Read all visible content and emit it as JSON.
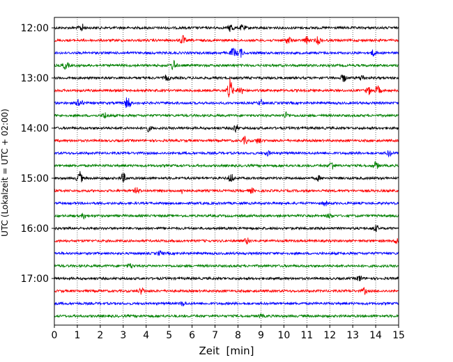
{
  "chart_data": {
    "type": "line",
    "title": "",
    "xlabel": "Zeit  [min]",
    "ylabel": "UTC (Lokalzeit = UTC + 02:00)",
    "xlim": [
      0,
      15
    ],
    "x_ticks": [
      0,
      1,
      2,
      3,
      4,
      5,
      6,
      7,
      8,
      9,
      10,
      11,
      12,
      13,
      14,
      15
    ],
    "x_tick_labels": [
      "0",
      "1",
      "2",
      "3",
      "4",
      "5",
      "6",
      "7",
      "8",
      "9",
      "10",
      "11",
      "12",
      "13",
      "14",
      "15"
    ],
    "grid": "vertical dotted",
    "y_tick_labels": [
      "12:00",
      "13:00",
      "14:00",
      "15:00",
      "16:00",
      "17:00"
    ],
    "y_tick_rows": [
      0,
      4,
      8,
      12,
      16,
      20
    ],
    "trace_colors": [
      "#000000",
      "#ff0000",
      "#0000ff",
      "#008000"
    ],
    "traces": [
      {
        "row": 0,
        "color": "#000000",
        "events": [
          {
            "x": 1.2,
            "amp": 5
          },
          {
            "x": 7.7,
            "amp": 6
          },
          {
            "x": 8.2,
            "amp": 4
          }
        ]
      },
      {
        "row": 1,
        "color": "#ff0000",
        "events": [
          {
            "x": 5.6,
            "amp": 6
          },
          {
            "x": 10.2,
            "amp": 5
          },
          {
            "x": 11.0,
            "amp": 5
          },
          {
            "x": 11.5,
            "amp": 5
          }
        ]
      },
      {
        "row": 2,
        "color": "#0000ff",
        "events": [
          {
            "x": 7.8,
            "amp": 7
          },
          {
            "x": 8.1,
            "amp": 6
          },
          {
            "x": 13.9,
            "amp": 4
          }
        ]
      },
      {
        "row": 3,
        "color": "#008000",
        "events": [
          {
            "x": 0.5,
            "amp": 5
          },
          {
            "x": 5.2,
            "amp": 7
          }
        ]
      },
      {
        "row": 4,
        "color": "#000000",
        "events": [
          {
            "x": 4.9,
            "amp": 4
          },
          {
            "x": 12.6,
            "amp": 5
          },
          {
            "x": 13.4,
            "amp": 4
          }
        ]
      },
      {
        "row": 5,
        "color": "#ff0000",
        "events": [
          {
            "x": 7.65,
            "amp": 16
          },
          {
            "x": 8.1,
            "amp": 6
          },
          {
            "x": 13.7,
            "amp": 5
          },
          {
            "x": 14.1,
            "amp": 6
          }
        ]
      },
      {
        "row": 6,
        "color": "#0000ff",
        "events": [
          {
            "x": 1.1,
            "amp": 7
          },
          {
            "x": 3.2,
            "amp": 10
          },
          {
            "x": 9.0,
            "amp": 4
          }
        ]
      },
      {
        "row": 7,
        "color": "#008000",
        "events": [
          {
            "x": 2.2,
            "amp": 4
          },
          {
            "x": 10.1,
            "amp": 4
          }
        ]
      },
      {
        "row": 8,
        "color": "#000000",
        "events": [
          {
            "x": 4.1,
            "amp": 4
          },
          {
            "x": 7.9,
            "amp": 5
          }
        ]
      },
      {
        "row": 9,
        "color": "#ff0000",
        "events": [
          {
            "x": 8.3,
            "amp": 5
          },
          {
            "x": 8.9,
            "amp": 4
          }
        ]
      },
      {
        "row": 10,
        "color": "#0000ff",
        "events": [
          {
            "x": 9.3,
            "amp": 3
          },
          {
            "x": 14.6,
            "amp": 4
          }
        ]
      },
      {
        "row": 11,
        "color": "#008000",
        "events": [
          {
            "x": 12.1,
            "amp": 6
          },
          {
            "x": 14.0,
            "amp": 5
          }
        ]
      },
      {
        "row": 12,
        "color": "#000000",
        "events": [
          {
            "x": 1.1,
            "amp": 9
          },
          {
            "x": 3.0,
            "amp": 6
          },
          {
            "x": 7.7,
            "amp": 6
          },
          {
            "x": 11.5,
            "amp": 3
          }
        ]
      },
      {
        "row": 13,
        "color": "#ff0000",
        "events": [
          {
            "x": 3.6,
            "amp": 4
          },
          {
            "x": 5.6,
            "amp": 4
          },
          {
            "x": 8.6,
            "amp": 3
          }
        ]
      },
      {
        "row": 14,
        "color": "#0000ff",
        "events": [
          {
            "x": 11.8,
            "amp": 3
          }
        ]
      },
      {
        "row": 15,
        "color": "#008000",
        "events": [
          {
            "x": 1.3,
            "amp": 3
          },
          {
            "x": 12.0,
            "amp": 3
          }
        ]
      },
      {
        "row": 16,
        "color": "#000000",
        "events": [
          {
            "x": 14.0,
            "amp": 4
          }
        ]
      },
      {
        "row": 17,
        "color": "#ff0000",
        "events": [
          {
            "x": 8.4,
            "amp": 4
          },
          {
            "x": 14.9,
            "amp": 3
          }
        ]
      },
      {
        "row": 18,
        "color": "#0000ff",
        "events": [
          {
            "x": 4.6,
            "amp": 3
          }
        ]
      },
      {
        "row": 19,
        "color": "#008000",
        "events": [
          {
            "x": 3.3,
            "amp": 3
          }
        ]
      },
      {
        "row": 20,
        "color": "#000000",
        "events": [
          {
            "x": 13.3,
            "amp": 4
          }
        ]
      },
      {
        "row": 21,
        "color": "#ff0000",
        "events": [
          {
            "x": 3.8,
            "amp": 4
          },
          {
            "x": 13.5,
            "amp": 4
          }
        ]
      },
      {
        "row": 22,
        "color": "#0000ff",
        "events": [
          {
            "x": 5.6,
            "amp": 3
          }
        ]
      },
      {
        "row": 23,
        "color": "#008000",
        "events": [
          {
            "x": 9.0,
            "amp": 2
          }
        ]
      }
    ]
  }
}
